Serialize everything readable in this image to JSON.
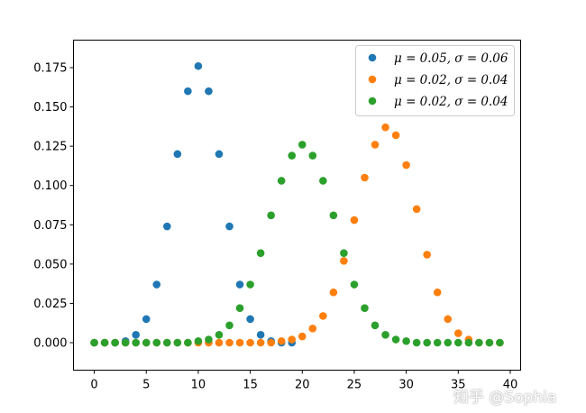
{
  "chart_data": {
    "type": "scatter",
    "title": "",
    "xlabel": "",
    "ylabel": "",
    "xlim": [
      -2,
      41
    ],
    "ylim": [
      -0.0175,
      0.1925
    ],
    "xticks": [
      0,
      5,
      10,
      15,
      20,
      25,
      30,
      35,
      40
    ],
    "xtick_labels": [
      "0",
      "5",
      "10",
      "15",
      "20",
      "25",
      "30",
      "35",
      "40"
    ],
    "yticks": [
      0.0,
      0.025,
      0.05,
      0.075,
      0.1,
      0.125,
      0.15,
      0.175
    ],
    "ytick_labels": [
      "0.000",
      "0.025",
      "0.050",
      "0.075",
      "0.100",
      "0.125",
      "0.150",
      "0.175"
    ],
    "grid": false,
    "legend_position": "top-right",
    "series": [
      {
        "name": "μ = 0.05,  σ = 0.06",
        "color": "#1f77b4",
        "x": [
          0,
          1,
          2,
          3,
          4,
          5,
          6,
          7,
          8,
          9,
          10,
          11,
          12,
          13,
          14,
          15,
          16,
          17,
          18,
          19
        ],
        "y": [
          0.0,
          0.0,
          0.0,
          0.001,
          0.005,
          0.015,
          0.037,
          0.074,
          0.12,
          0.16,
          0.176,
          0.16,
          0.12,
          0.074,
          0.037,
          0.015,
          0.005,
          0.001,
          0.0,
          0.0
        ]
      },
      {
        "name": "μ = 0.02,  σ = 0.04",
        "color": "#ff7f0e",
        "x": [
          0,
          1,
          2,
          3,
          4,
          5,
          6,
          7,
          8,
          9,
          10,
          11,
          12,
          13,
          14,
          15,
          16,
          17,
          18,
          19,
          20,
          21,
          22,
          23,
          24,
          25,
          26,
          27,
          28,
          29,
          30,
          31,
          32,
          33,
          34,
          35,
          36,
          37,
          38,
          39
        ],
        "y": [
          0,
          0,
          0,
          0,
          0,
          0,
          0,
          0,
          0,
          0,
          0,
          0,
          0,
          0,
          0,
          0,
          0,
          0.0,
          0.001,
          0.002,
          0.004,
          0.009,
          0.017,
          0.032,
          0.052,
          0.078,
          0.105,
          0.126,
          0.137,
          0.132,
          0.113,
          0.085,
          0.056,
          0.032,
          0.015,
          0.006,
          0.002,
          0.0,
          0.0,
          0.0
        ]
      },
      {
        "name": "μ = 0.02,  σ = 0.04",
        "color": "#2ca02c",
        "x": [
          0,
          1,
          2,
          3,
          4,
          5,
          6,
          7,
          8,
          9,
          10,
          11,
          12,
          13,
          14,
          15,
          16,
          17,
          18,
          19,
          20,
          21,
          22,
          23,
          24,
          25,
          26,
          27,
          28,
          29,
          30,
          31,
          32,
          33,
          34,
          35,
          36,
          37,
          38,
          39
        ],
        "y": [
          0,
          0,
          0,
          0,
          0,
          0,
          0,
          0,
          0,
          0,
          0.001,
          0.002,
          0.005,
          0.011,
          0.022,
          0.037,
          0.057,
          0.081,
          0.103,
          0.119,
          0.126,
          0.119,
          0.103,
          0.081,
          0.057,
          0.037,
          0.022,
          0.011,
          0.005,
          0.002,
          0.001,
          0,
          0,
          0,
          0,
          0,
          0,
          0,
          0,
          0
        ]
      }
    ]
  },
  "watermark": "知乎 @Sophia"
}
